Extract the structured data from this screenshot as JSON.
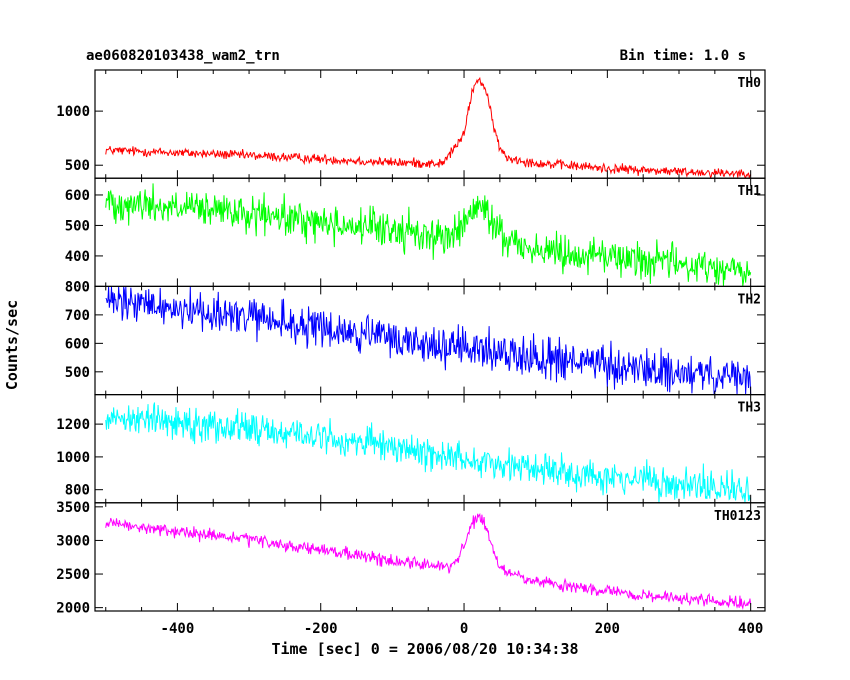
{
  "header": {
    "title": "ae060820103438_wam2_trn",
    "bin_time": "Bin time: 1.0 s"
  },
  "chart_data": {
    "type": "line",
    "title": "ae060820103438_wam2_trn",
    "xlabel": "Time [sec] 0 = 2006/08/20 10:34:38",
    "ylabel": "Counts/sec",
    "xlim": [
      -515,
      420
    ],
    "x_ticks": [
      -400,
      -200,
      0,
      200,
      400
    ],
    "panels": [
      {
        "name": "TH0",
        "color": "#ff0000",
        "ylim": [
          380,
          1380
        ],
        "y_ticks": [
          500,
          1000
        ],
        "noise": 22,
        "trend": [
          [
            -500,
            640
          ],
          [
            -300,
            590
          ],
          [
            -100,
            525
          ],
          [
            -30,
            515
          ],
          [
            0,
            780
          ],
          [
            10,
            1150
          ],
          [
            20,
            1310
          ],
          [
            30,
            1200
          ],
          [
            40,
            900
          ],
          [
            50,
            650
          ],
          [
            60,
            570
          ],
          [
            100,
            520
          ],
          [
            200,
            470
          ],
          [
            300,
            440
          ],
          [
            400,
            425
          ]
        ]
      },
      {
        "name": "TH1",
        "color": "#00ff00",
        "ylim": [
          300,
          655
        ],
        "y_ticks": [
          400,
          500,
          600
        ],
        "noise": 30,
        "trend": [
          [
            -500,
            580
          ],
          [
            -300,
            535
          ],
          [
            -100,
            485
          ],
          [
            -20,
            460
          ],
          [
            0,
            505
          ],
          [
            20,
            565
          ],
          [
            30,
            540
          ],
          [
            60,
            455
          ],
          [
            100,
            420
          ],
          [
            200,
            400
          ],
          [
            300,
            375
          ],
          [
            400,
            345
          ]
        ]
      },
      {
        "name": "TH2",
        "color": "#0000ff",
        "ylim": [
          420,
          800
        ],
        "y_ticks": [
          500,
          600,
          700,
          800
        ],
        "noise": 35,
        "trend": [
          [
            -500,
            745
          ],
          [
            -400,
            725
          ],
          [
            -300,
            690
          ],
          [
            -200,
            650
          ],
          [
            -100,
            615
          ],
          [
            0,
            580
          ],
          [
            100,
            555
          ],
          [
            200,
            520
          ],
          [
            300,
            495
          ],
          [
            400,
            470
          ]
        ]
      },
      {
        "name": "TH3",
        "color": "#00ffff",
        "ylim": [
          720,
          1380
        ],
        "y_ticks": [
          800,
          1000,
          1200
        ],
        "noise": 50,
        "trend": [
          [
            -500,
            1250
          ],
          [
            -400,
            1215
          ],
          [
            -300,
            1175
          ],
          [
            -200,
            1120
          ],
          [
            -100,
            1060
          ],
          [
            0,
            990
          ],
          [
            100,
            930
          ],
          [
            200,
            880
          ],
          [
            300,
            830
          ],
          [
            400,
            790
          ]
        ]
      },
      {
        "name": "TH0123",
        "color": "#ff00ff",
        "ylim": [
          1950,
          3560
        ],
        "y_ticks": [
          2000,
          2500,
          3000,
          3500
        ],
        "noise": 45,
        "trend": [
          [
            -500,
            3250
          ],
          [
            -300,
            3010
          ],
          [
            -100,
            2700
          ],
          [
            -20,
            2600
          ],
          [
            0,
            2900
          ],
          [
            10,
            3200
          ],
          [
            20,
            3390
          ],
          [
            30,
            3200
          ],
          [
            45,
            2700
          ],
          [
            60,
            2520
          ],
          [
            100,
            2380
          ],
          [
            200,
            2240
          ],
          [
            300,
            2130
          ],
          [
            400,
            2060
          ]
        ]
      }
    ]
  }
}
